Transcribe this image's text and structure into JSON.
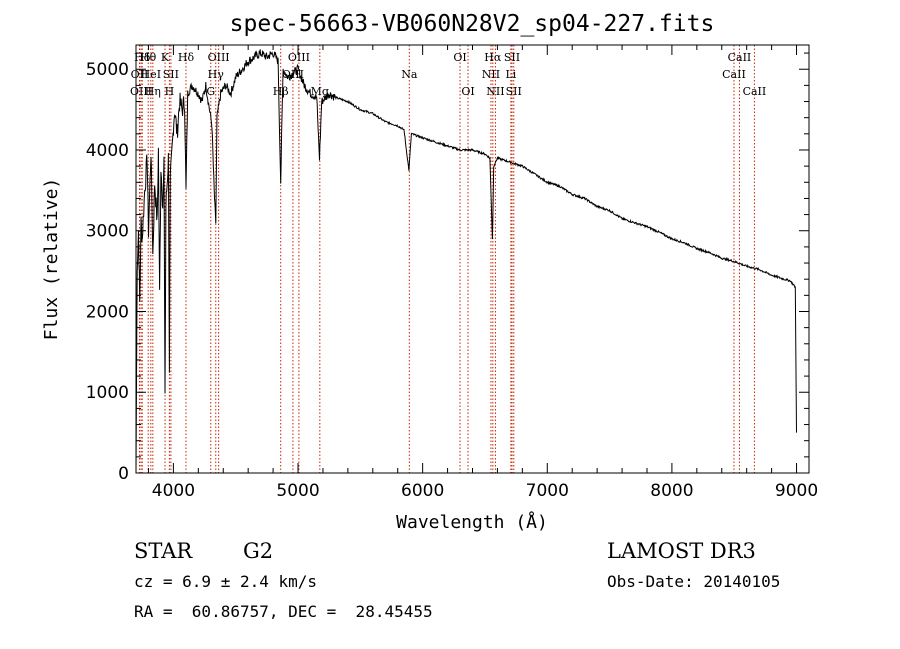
{
  "chart_data": {
    "type": "line",
    "title": "spec-56663-VB060N28V2_sp04-227.fits",
    "xlabel": "Wavelength (Å)",
    "ylabel": "Flux (relative)",
    "xlim": [
      3700,
      9100
    ],
    "ylim": [
      0,
      5300
    ],
    "xticks": [
      4000,
      5000,
      6000,
      7000,
      8000,
      9000
    ],
    "yticks": [
      0,
      1000,
      2000,
      3000,
      4000,
      5000
    ],
    "spectrum": [
      [
        3700,
        0
      ],
      [
        3705,
        1300
      ],
      [
        3710,
        2600
      ],
      [
        3720,
        3000
      ],
      [
        3730,
        2100
      ],
      [
        3740,
        3100
      ],
      [
        3750,
        2900
      ],
      [
        3770,
        3500
      ],
      [
        3790,
        3900
      ],
      [
        3800,
        3000
      ],
      [
        3820,
        4000
      ],
      [
        3835,
        2700
      ],
      [
        3850,
        3600
      ],
      [
        3870,
        3100
      ],
      [
        3880,
        4000
      ],
      [
        3889,
        2200
      ],
      [
        3900,
        3800
      ],
      [
        3915,
        3300
      ],
      [
        3925,
        3800
      ],
      [
        3933,
        1000
      ],
      [
        3940,
        3300
      ],
      [
        3950,
        3600
      ],
      [
        3960,
        3900
      ],
      [
        3968,
        1300
      ],
      [
        3975,
        3600
      ],
      [
        3990,
        4000
      ],
      [
        4000,
        4300
      ],
      [
        4010,
        4500
      ],
      [
        4030,
        4200
      ],
      [
        4050,
        4600
      ],
      [
        4070,
        4500
      ],
      [
        4090,
        4600
      ],
      [
        4101,
        3500
      ],
      [
        4115,
        4700
      ],
      [
        4150,
        4800
      ],
      [
        4200,
        4700
      ],
      [
        4230,
        4600
      ],
      [
        4260,
        4800
      ],
      [
        4290,
        4500
      ],
      [
        4310,
        4300
      ],
      [
        4320,
        3800
      ],
      [
        4330,
        3400
      ],
      [
        4340,
        3100
      ],
      [
        4350,
        4400
      ],
      [
        4380,
        4700
      ],
      [
        4420,
        4800
      ],
      [
        4460,
        4700
      ],
      [
        4500,
        4900
      ],
      [
        4550,
        5000
      ],
      [
        4600,
        5100
      ],
      [
        4650,
        5150
      ],
      [
        4700,
        5200
      ],
      [
        4750,
        5150
      ],
      [
        4800,
        5200
      ],
      [
        4840,
        5100
      ],
      [
        4861,
        3600
      ],
      [
        4880,
        5000
      ],
      [
        4920,
        4900
      ],
      [
        4960,
        4950
      ],
      [
        5000,
        5000
      ],
      [
        5050,
        4800
      ],
      [
        5100,
        4700
      ],
      [
        5150,
        4650
      ],
      [
        5172,
        3900
      ],
      [
        5190,
        4600
      ],
      [
        5250,
        4700
      ],
      [
        5300,
        4650
      ],
      [
        5400,
        4600
      ],
      [
        5500,
        4500
      ],
      [
        5600,
        4450
      ],
      [
        5700,
        4350
      ],
      [
        5800,
        4300
      ],
      [
        5850,
        4250
      ],
      [
        5890,
        3750
      ],
      [
        5910,
        4200
      ],
      [
        6000,
        4150
      ],
      [
        6100,
        4100
      ],
      [
        6200,
        4050
      ],
      [
        6300,
        4000
      ],
      [
        6400,
        4000
      ],
      [
        6500,
        3950
      ],
      [
        6540,
        3900
      ],
      [
        6560,
        2900
      ],
      [
        6570,
        3800
      ],
      [
        6600,
        3900
      ],
      [
        6700,
        3850
      ],
      [
        6800,
        3800
      ],
      [
        6900,
        3700
      ],
      [
        7000,
        3600
      ],
      [
        7100,
        3550
      ],
      [
        7200,
        3450
      ],
      [
        7300,
        3400
      ],
      [
        7400,
        3300
      ],
      [
        7500,
        3250
      ],
      [
        7600,
        3150
      ],
      [
        7700,
        3100
      ],
      [
        7800,
        3050
      ],
      [
        7900,
        2980
      ],
      [
        8000,
        2900
      ],
      [
        8100,
        2850
      ],
      [
        8200,
        2780
      ],
      [
        8300,
        2730
      ],
      [
        8400,
        2660
      ],
      [
        8500,
        2620
      ],
      [
        8600,
        2560
      ],
      [
        8700,
        2520
      ],
      [
        8800,
        2450
      ],
      [
        8900,
        2400
      ],
      [
        8950,
        2380
      ],
      [
        8990,
        2300
      ],
      [
        9000,
        500
      ]
    ],
    "lines": [
      {
        "name": "Hδ",
        "wave": 3750,
        "row": 0
      },
      {
        "name": "OII",
        "wave": 3728,
        "row": 1
      },
      {
        "name": "OIII",
        "wave": 3740,
        "row": 2
      },
      {
        "name": "Hθ",
        "wave": 3798,
        "row": 0
      },
      {
        "name": "HeI",
        "wave": 3819,
        "row": 1
      },
      {
        "name": "Hη",
        "wave": 3835,
        "row": 2
      },
      {
        "name": "K",
        "wave": 3933,
        "row": 0
      },
      {
        "name": "SII",
        "wave": 3980,
        "row": 1
      },
      {
        "name": "H",
        "wave": 3968,
        "row": 2
      },
      {
        "name": "Hδ",
        "wave": 4101,
        "row": 0
      },
      {
        "name": "OIII",
        "wave": 4363,
        "row": 0
      },
      {
        "name": "Hγ",
        "wave": 4340,
        "row": 1
      },
      {
        "name": "G",
        "wave": 4300,
        "row": 2
      },
      {
        "name": "Hβ",
        "wave": 4861,
        "row": 2
      },
      {
        "name": "OIII",
        "wave": 5007,
        "row": 0
      },
      {
        "name": "OIII",
        "wave": 4959,
        "row": 1
      },
      {
        "name": "Mg",
        "wave": 5175,
        "row": 2
      },
      {
        "name": "Na",
        "wave": 5893,
        "row": 1
      },
      {
        "name": "OI",
        "wave": 6300,
        "row": 0
      },
      {
        "name": "OI",
        "wave": 6364,
        "row": 2
      },
      {
        "name": "Hα",
        "wave": 6563,
        "row": 0
      },
      {
        "name": "NII",
        "wave": 6548,
        "row": 1
      },
      {
        "name": "NII",
        "wave": 6584,
        "row": 2
      },
      {
        "name": "SII",
        "wave": 6717,
        "row": 0
      },
      {
        "name": "Li",
        "wave": 6708,
        "row": 1
      },
      {
        "name": "SII",
        "wave": 6731,
        "row": 2
      },
      {
        "name": "CaII",
        "wave": 8542,
        "row": 0
      },
      {
        "name": "CaII",
        "wave": 8498,
        "row": 1
      },
      {
        "name": "CaII",
        "wave": 8662,
        "row": 2
      }
    ]
  },
  "info": {
    "object_class": "STAR",
    "subclass": "G2",
    "survey": "LAMOST DR3",
    "cz": "cz = 6.9 ± 2.4 km/s",
    "obs_date": "Obs-Date: 20140105",
    "radec": "RA =  60.86757, DEC =  28.45455"
  },
  "colors": {
    "line_marker": "#cc2200",
    "spectrum": "#000000",
    "axis": "#000000"
  }
}
